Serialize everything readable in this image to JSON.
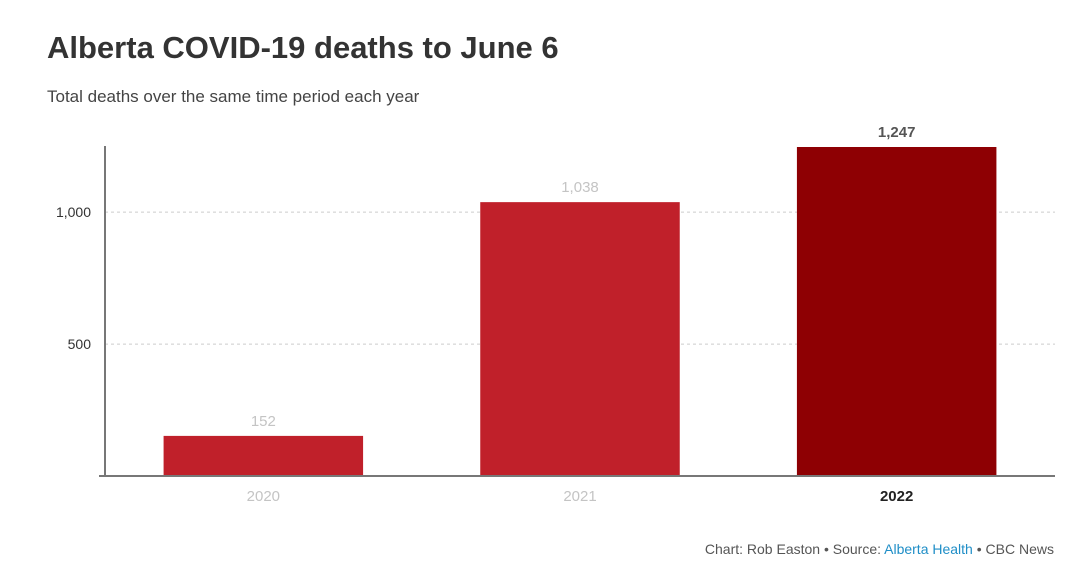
{
  "title": "Alberta COVID-19 deaths to June 6",
  "subtitle": "Total deaths over the same time period each year",
  "footer": {
    "chart_credit": "Chart: Rob Easton",
    "separator": "•",
    "source_prefix": "Source:",
    "source_name": "Alberta Health",
    "publisher": "CBC News"
  },
  "colors": {
    "bar_default": "#c0202a",
    "bar_highlight": "#8e0003",
    "label_muted": "#c4c4c4",
    "label_highlight": "#555555",
    "axis": "#777777",
    "grid": "#cccccc",
    "tick_text": "#333333",
    "source_link": "#1f8ec7"
  },
  "chart_data": {
    "type": "bar",
    "title": "Alberta COVID-19 deaths to June 6",
    "subtitle": "Total deaths over the same time period each year",
    "xlabel": "",
    "ylabel": "",
    "categories": [
      "2020",
      "2021",
      "2022"
    ],
    "values": [
      152,
      1038,
      1247
    ],
    "value_labels": [
      "152",
      "1,038",
      "1,247"
    ],
    "highlight_index": 2,
    "ylim": [
      0,
      1247
    ],
    "yticks": [
      500,
      1000
    ],
    "ytick_labels": [
      "500",
      "1,000"
    ],
    "grid": true,
    "legend": "none"
  }
}
